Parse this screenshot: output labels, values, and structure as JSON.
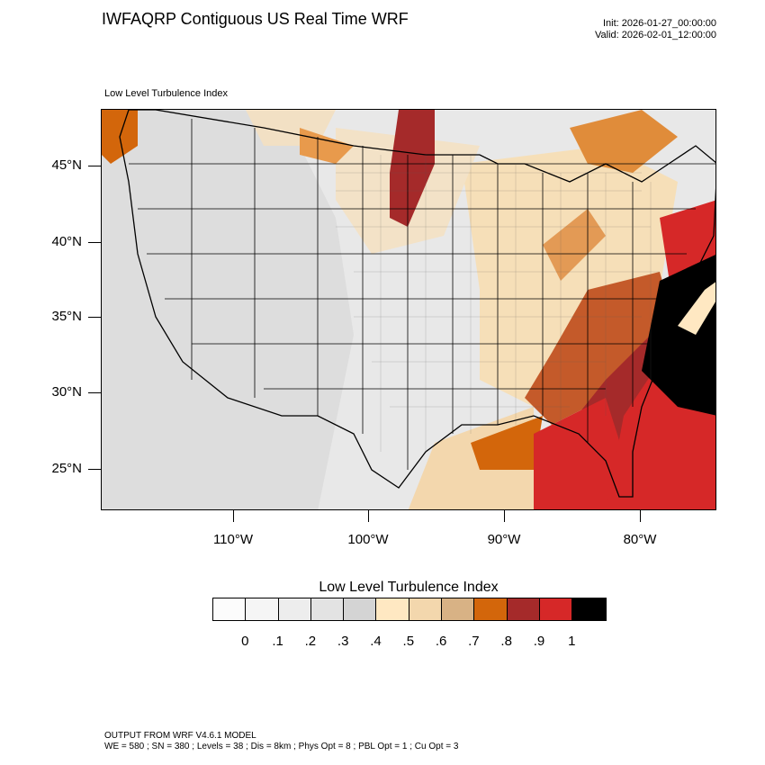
{
  "header": {
    "title": "IWFAQRP Contiguous US Real Time WRF",
    "init": "Init: 2026-01-27_00:00:00",
    "valid": "Valid: 2026-02-01_12:00:00"
  },
  "map": {
    "subtitle": "Low Level Turbulence Index",
    "lat_labels": [
      "45°N",
      "40°N",
      "35°N",
      "30°N",
      "25°N"
    ],
    "lon_labels": [
      "110°W",
      "100°W",
      "90°W",
      "80°W"
    ]
  },
  "colorbar": {
    "title": "Low Level Turbulence Index",
    "colors": [
      "#fcfcfc",
      "#f5f5f5",
      "#ededed",
      "#e3e3e3",
      "#d4d4d4",
      "#ffe8c2",
      "#f3d7ad",
      "#d8b285",
      "#d3660b",
      "#a52a2a",
      "#d62828",
      "#000000"
    ],
    "labels": [
      "0",
      ".1",
      ".2",
      ".3",
      ".4",
      ".5",
      ".6",
      ".7",
      ".8",
      ".9",
      "1"
    ]
  },
  "footer": {
    "line1": "OUTPUT FROM WRF V4.6.1 MODEL",
    "line2": "WE = 580 ; SN = 380 ; Levels = 38 ; Dis = 8km ; Phys Opt = 8 ; PBL Opt = 1 ; Cu Opt = 3"
  }
}
